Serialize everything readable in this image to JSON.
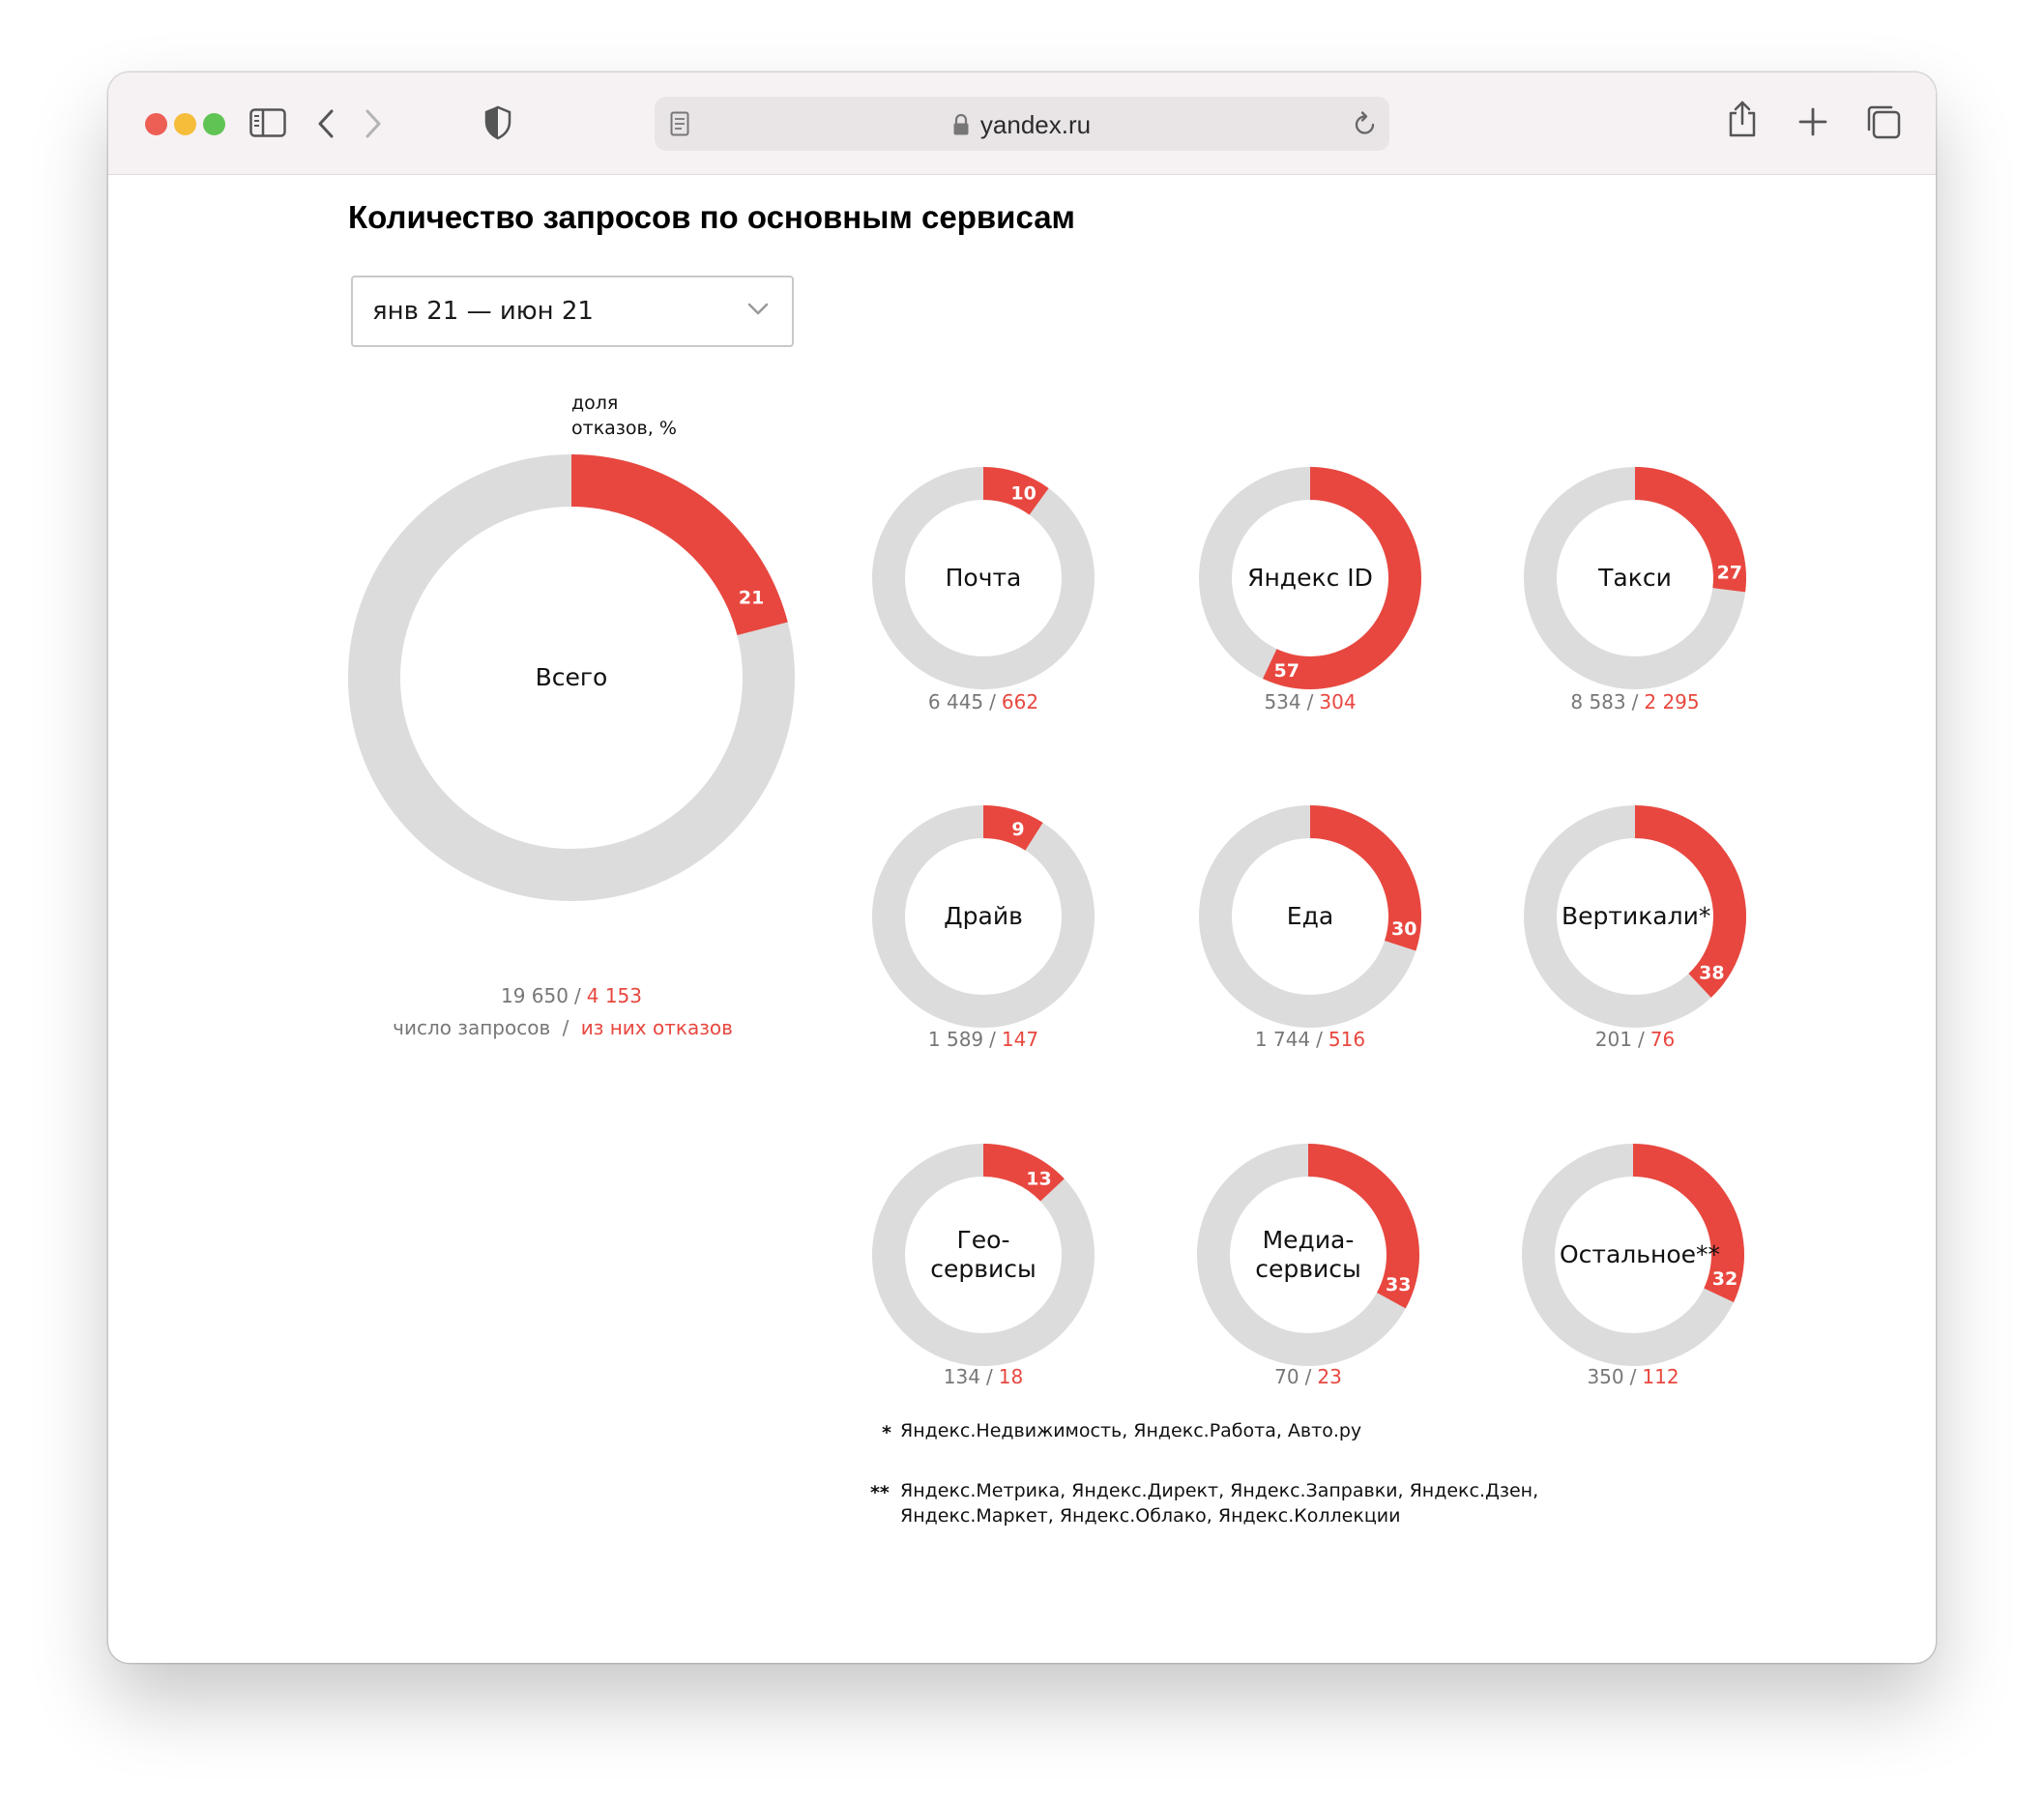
{
  "browser": {
    "url": "yandex.ru"
  },
  "page": {
    "title": "Количество запросов по основным сервисам",
    "period_select": "янв 21 — июн 21",
    "share_label_line1": "доля",
    "share_label_line2": "отказов, %",
    "total_caption_requests": "число запросов",
    "total_caption_rejects": "из них отказов",
    "separator": "/",
    "footnote1_mark": "*",
    "footnote1_text": "Яндекс.Недвижимость, Яндекс.Работа, Авто.ру",
    "footnote2_mark": "**",
    "footnote2_line1": "Яндекс.Метрика, Яндекс.Директ, Яндекс.Заправки, Яндекс.Дзен,",
    "footnote2_line2": "Яндекс.Маркет, Яндекс.Облако, Яндекс.Коллекции"
  },
  "colors": {
    "reject": "#e8473f",
    "track": "#dcdcdc"
  },
  "chart_data": {
    "type": "pie",
    "variant": "donut",
    "series": [
      {
        "name": "Всего",
        "line1": "Всего",
        "line2": "",
        "requests": "19 650",
        "rejects": "4 153",
        "reject_pct": 21
      },
      {
        "name": "Почта",
        "line1": "Почта",
        "line2": "",
        "requests": "6 445",
        "rejects": "662",
        "reject_pct": 10
      },
      {
        "name": "Яндекс ID",
        "line1": "Яндекс ID",
        "line2": "",
        "requests": "534",
        "rejects": "304",
        "reject_pct": 57
      },
      {
        "name": "Такси",
        "line1": "Такси",
        "line2": "",
        "requests": "8 583",
        "rejects": "2 295",
        "reject_pct": 27
      },
      {
        "name": "Драйв",
        "line1": "Драйв",
        "line2": "",
        "requests": "1 589",
        "rejects": "147",
        "reject_pct": 9
      },
      {
        "name": "Еда",
        "line1": "Еда",
        "line2": "",
        "requests": "1 744",
        "rejects": "516",
        "reject_pct": 30
      },
      {
        "name": "Вертикали*",
        "line1": "Вертикали*",
        "line2": "",
        "requests": "201",
        "rejects": "76",
        "reject_pct": 38
      },
      {
        "name": "Гео-сервисы",
        "line1": "Гео-",
        "line2": "сервисы",
        "requests": "134",
        "rejects": "18",
        "reject_pct": 13
      },
      {
        "name": "Медиа-сервисы",
        "line1": "Медиа-",
        "line2": "сервисы",
        "requests": "70",
        "rejects": "23",
        "reject_pct": 33
      },
      {
        "name": "Остальное**",
        "line1": "Остальное**",
        "line2": "",
        "requests": "350",
        "rejects": "112",
        "reject_pct": 32
      }
    ]
  }
}
